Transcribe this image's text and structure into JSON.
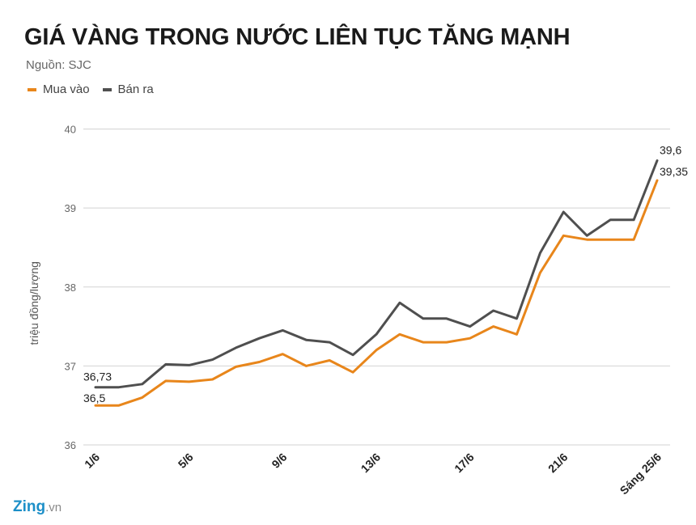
{
  "colors": {
    "buy": "#e8861b",
    "sell": "#4f4f4f",
    "grid": "#d3d3d3"
  },
  "legend": {
    "buy": "Mua vào",
    "sell": "Bán ra"
  },
  "watermark": {
    "brand": "Zing",
    "suffix": ".vn"
  },
  "chart_data": {
    "type": "line",
    "title": "GIÁ VÀNG TRONG NƯỚC LIÊN TỤC TĂNG MẠNH",
    "subtitle": "Nguồn: SJC",
    "ylabel": "triệu đồng/lượng",
    "xlabel": "",
    "ylim": [
      36,
      40
    ],
    "yticks": [
      36,
      37,
      38,
      39,
      40
    ],
    "grid": true,
    "legend_position": "top-left",
    "x": [
      "1/6",
      "2/6",
      "3/6",
      "4/6",
      "5/6",
      "6/6",
      "7/6",
      "8/6",
      "9/6",
      "10/6",
      "11/6",
      "12/6",
      "13/6",
      "14/6",
      "15/6",
      "16/6",
      "17/6",
      "18/6",
      "19/6",
      "20/6",
      "21/6",
      "22/6",
      "23/6",
      "24/6",
      "Sáng 25/6"
    ],
    "xtick_labels": [
      "1/6",
      "",
      "",
      "",
      "5/6",
      "",
      "",
      "",
      "9/6",
      "",
      "",
      "",
      "13/6",
      "",
      "",
      "",
      "17/6",
      "",
      "",
      "",
      "21/6",
      "",
      "",
      "",
      "Sáng 25/6"
    ],
    "series": [
      {
        "name": "Mua vào",
        "values": [
          36.5,
          36.5,
          36.6,
          36.81,
          36.8,
          36.83,
          36.99,
          37.05,
          37.15,
          37.0,
          37.07,
          36.92,
          37.2,
          37.4,
          37.3,
          37.3,
          37.35,
          37.5,
          37.4,
          38.18,
          38.65,
          38.6,
          38.6,
          38.6,
          39.35
        ]
      },
      {
        "name": "Bán ra",
        "values": [
          36.73,
          36.73,
          36.77,
          37.02,
          37.01,
          37.08,
          37.23,
          37.35,
          37.45,
          37.33,
          37.3,
          37.14,
          37.4,
          37.8,
          37.6,
          37.6,
          37.5,
          37.7,
          37.6,
          38.43,
          38.95,
          38.65,
          38.85,
          38.85,
          39.6
        ]
      }
    ],
    "data_labels": [
      {
        "series": 1,
        "index": 0,
        "text": "36,73"
      },
      {
        "series": 0,
        "index": 0,
        "text": "36,5"
      },
      {
        "series": 1,
        "index": 24,
        "text": "39,6"
      },
      {
        "series": 0,
        "index": 24,
        "text": "39,35"
      }
    ]
  }
}
